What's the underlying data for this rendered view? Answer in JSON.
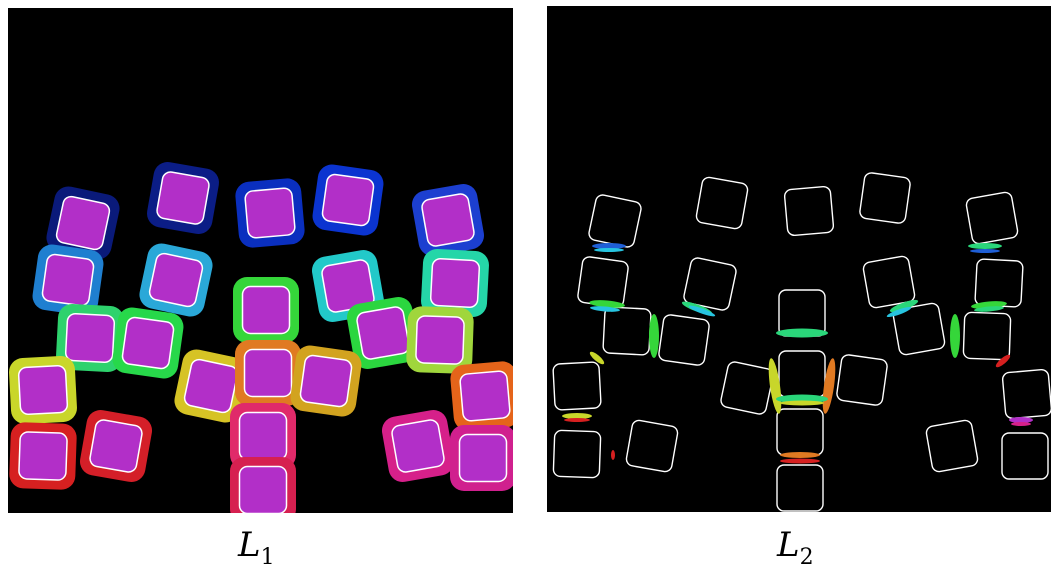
{
  "figure": {
    "panels": [
      {
        "id": "l1",
        "caption_symbol": "L",
        "caption_subscript": "1",
        "background": "#000000",
        "fill_color": "#b22fc8",
        "outline_color": "#ffffff"
      },
      {
        "id": "l2",
        "caption_symbol": "L",
        "caption_subscript": "2",
        "background": "#000000",
        "outline_color": "#ffffff"
      }
    ],
    "ring_colors": [
      "#0a1a7a",
      "#0b1d86",
      "#0a2fbf",
      "#0b34d0",
      "#1c3fd0",
      "#1f7fd0",
      "#2aa8d8",
      "#22c9c9",
      "#25d6a8",
      "#2ed26d",
      "#27d84a",
      "#35d63a",
      "#2bd63f",
      "#a0d63c",
      "#c9d62a",
      "#d6c325",
      "#e07a22",
      "#d2a31f",
      "#e5641a",
      "#d62020",
      "#d41f28",
      "#e02a6a",
      "#d6208a",
      "#d0208e",
      "#d62050"
    ],
    "contact_colors": [
      "#1f5fd6",
      "#27c4e0",
      "#2ad67a",
      "#35d63a",
      "#c8d62a",
      "#e07a22",
      "#d62020",
      "#d6208a",
      "#b22fc8"
    ]
  }
}
